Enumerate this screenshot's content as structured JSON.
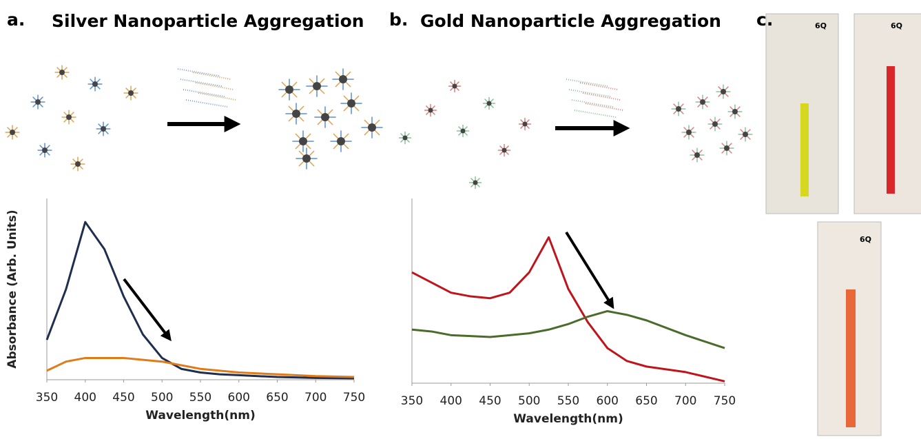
{
  "chart_data": [
    {
      "type": "line",
      "panel_label": "a.",
      "title": "Silver Nanoparticle Aggregation",
      "x_label": "Wavelength(nm)",
      "y_label": "Absorbance (Arb. Units)",
      "x": [
        350,
        375,
        400,
        425,
        450,
        475,
        500,
        525,
        550,
        575,
        600,
        650,
        700,
        750
      ],
      "series": [
        {
          "color": "#1f2d4e",
          "values": [
            0.22,
            0.5,
            0.87,
            0.72,
            0.46,
            0.25,
            0.12,
            0.06,
            0.04,
            0.03,
            0.025,
            0.015,
            0.01,
            0.008
          ]
        },
        {
          "color": "#e07b1a",
          "values": [
            0.05,
            0.1,
            0.12,
            0.12,
            0.12,
            0.11,
            0.1,
            0.08,
            0.06,
            0.05,
            0.04,
            0.03,
            0.02,
            0.015
          ]
        }
      ],
      "xlim": [
        350,
        750
      ],
      "xticks": [
        350,
        400,
        450,
        500,
        550,
        600,
        650,
        700,
        750
      ],
      "ylim": [
        0,
        1
      ]
    },
    {
      "type": "line",
      "panel_label": "b.",
      "title": "Gold Nanoparticle Aggregation",
      "x_label": "Wavelength(nm)",
      "x": [
        350,
        375,
        400,
        425,
        450,
        475,
        500,
        525,
        550,
        575,
        600,
        625,
        650,
        700,
        750
      ],
      "series": [
        {
          "color": "#c0141c",
          "values": [
            0.6,
            0.545,
            0.49,
            0.47,
            0.46,
            0.49,
            0.6,
            0.79,
            0.51,
            0.33,
            0.19,
            0.12,
            0.09,
            0.06,
            0.01
          ]
        },
        {
          "color": "#4a6b2a",
          "values": [
            0.29,
            0.28,
            0.26,
            0.255,
            0.25,
            0.26,
            0.27,
            0.29,
            0.32,
            0.36,
            0.39,
            0.37,
            0.34,
            0.26,
            0.19
          ]
        }
      ],
      "xlim": [
        350,
        750
      ],
      "xticks": [
        350,
        400,
        450,
        500,
        550,
        600,
        650,
        700,
        750
      ],
      "ylim": [
        0,
        1
      ]
    }
  ],
  "panel_c": {
    "label": "c.",
    "cuvette_labels": [
      "6Q",
      "6Q",
      "6Q"
    ]
  }
}
